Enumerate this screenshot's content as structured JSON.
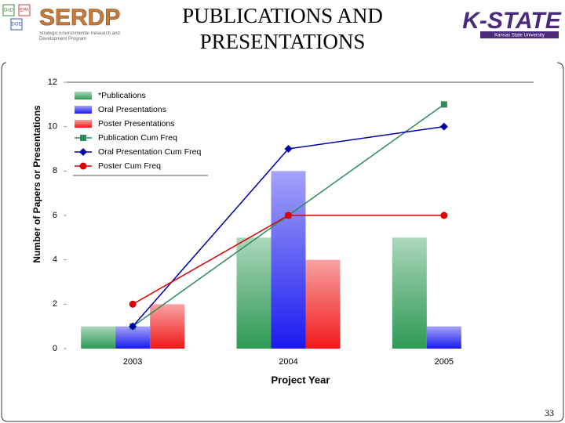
{
  "slide": {
    "title": "PUBLICATIONS AND PRESENTATIONS",
    "logo_left": "SERDP",
    "logo_left_sub": "Strategic Environmental Research and Development Program",
    "logo_badges": [
      "DoD",
      "EPA",
      "DOE"
    ],
    "logo_right": "K-STATE",
    "logo_right_sub": "Kansas State University",
    "page_number": "33"
  },
  "chart_data": {
    "type": "bar",
    "x_label": "Project Year",
    "y_label": "Number of Papers or Presentations",
    "categories": [
      "2003",
      "2004",
      "2005"
    ],
    "ylim": [
      0,
      12
    ],
    "yticks": [
      0,
      2,
      4,
      6,
      8,
      10,
      12
    ],
    "grid": false,
    "legend": "upper left",
    "series": [
      {
        "name": "*Publications",
        "type": "bar",
        "color": "#2e9a55",
        "values": [
          1,
          5,
          5
        ]
      },
      {
        "name": "Oral Presentations",
        "type": "bar",
        "color": "#1a1aee",
        "values": [
          1,
          8,
          1
        ]
      },
      {
        "name": "Poster Presentations",
        "type": "bar",
        "color": "#f01818",
        "values": [
          2,
          4,
          0
        ]
      },
      {
        "name": "Publication Cum Freq",
        "type": "line",
        "marker": "square",
        "color": "#2e8b57",
        "values": [
          1,
          6,
          11
        ]
      },
      {
        "name": "Oral Presentation Cum Freq",
        "type": "line",
        "marker": "diamond",
        "color": "#0000a8",
        "values": [
          1,
          9,
          10
        ]
      },
      {
        "name": "Poster Cum Freq",
        "type": "line",
        "marker": "circle",
        "color": "#d80000",
        "values": [
          2,
          6,
          6
        ]
      }
    ]
  }
}
